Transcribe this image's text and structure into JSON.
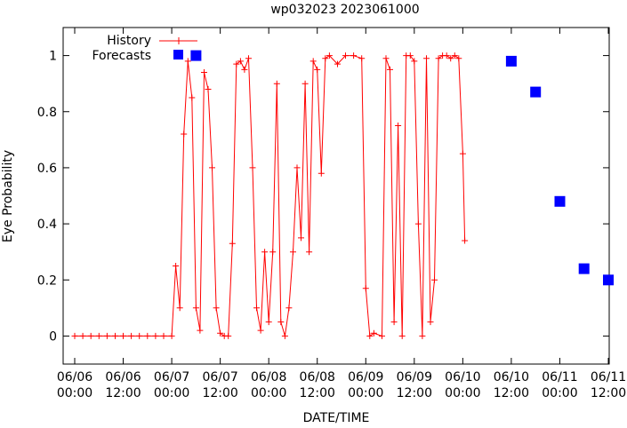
{
  "chart_data": {
    "type": "scatter",
    "title": "wp032023 2023061000",
    "xlabel": "DATE/TIME",
    "ylabel": "Eye Probability",
    "xlim": [
      "2023-06-06 00:00",
      "2023-06-11 12:00"
    ],
    "ylim": [
      -0.1,
      1.1
    ],
    "grid": false,
    "legend_position": "top-left",
    "colors": {
      "history": "#ff0000",
      "forecasts": "#0000ff"
    },
    "x_ticks": [
      {
        "date": "06/06",
        "time": "00:00"
      },
      {
        "date": "06/06",
        "time": "12:00"
      },
      {
        "date": "06/07",
        "time": "00:00"
      },
      {
        "date": "06/07",
        "time": "12:00"
      },
      {
        "date": "06/08",
        "time": "00:00"
      },
      {
        "date": "06/08",
        "time": "12:00"
      },
      {
        "date": "06/09",
        "time": "00:00"
      },
      {
        "date": "06/09",
        "time": "12:00"
      },
      {
        "date": "06/10",
        "time": "00:00"
      },
      {
        "date": "06/10",
        "time": "12:00"
      },
      {
        "date": "06/11",
        "time": "00:00"
      },
      {
        "date": "06/11",
        "time": "12:00"
      }
    ],
    "y_ticks": [
      "0",
      "0.2",
      "0.4",
      "0.6",
      "0.8",
      "1"
    ],
    "series": [
      {
        "name": "History",
        "style": "line-plus",
        "points": [
          [
            "2023-06-06 00:00",
            0.0
          ],
          [
            "2023-06-06 02:00",
            0.0
          ],
          [
            "2023-06-06 04:00",
            0.0
          ],
          [
            "2023-06-06 06:00",
            0.0
          ],
          [
            "2023-06-06 08:00",
            0.0
          ],
          [
            "2023-06-06 10:00",
            0.0
          ],
          [
            "2023-06-06 12:00",
            0.0
          ],
          [
            "2023-06-06 14:00",
            0.0
          ],
          [
            "2023-06-06 16:00",
            0.0
          ],
          [
            "2023-06-06 18:00",
            0.0
          ],
          [
            "2023-06-06 20:00",
            0.0
          ],
          [
            "2023-06-06 22:00",
            0.0
          ],
          [
            "2023-06-07 00:00",
            0.0
          ],
          [
            "2023-06-07 01:00",
            0.25
          ],
          [
            "2023-06-07 02:00",
            0.1
          ],
          [
            "2023-06-07 03:00",
            0.72
          ],
          [
            "2023-06-07 04:00",
            0.98
          ],
          [
            "2023-06-07 05:00",
            0.85
          ],
          [
            "2023-06-07 06:00",
            0.1
          ],
          [
            "2023-06-07 07:00",
            0.02
          ],
          [
            "2023-06-07 08:00",
            0.94
          ],
          [
            "2023-06-07 09:00",
            0.88
          ],
          [
            "2023-06-07 10:00",
            0.6
          ],
          [
            "2023-06-07 11:00",
            0.1
          ],
          [
            "2023-06-07 12:00",
            0.01
          ],
          [
            "2023-06-07 13:00",
            0.0
          ],
          [
            "2023-06-07 14:00",
            0.0
          ],
          [
            "2023-06-07 15:00",
            0.33
          ],
          [
            "2023-06-07 16:00",
            0.97
          ],
          [
            "2023-06-07 17:00",
            0.98
          ],
          [
            "2023-06-07 18:00",
            0.95
          ],
          [
            "2023-06-07 19:00",
            0.99
          ],
          [
            "2023-06-07 20:00",
            0.6
          ],
          [
            "2023-06-07 21:00",
            0.1
          ],
          [
            "2023-06-07 22:00",
            0.02
          ],
          [
            "2023-06-07 23:00",
            0.3
          ],
          [
            "2023-06-08 00:00",
            0.05
          ],
          [
            "2023-06-08 01:00",
            0.3
          ],
          [
            "2023-06-08 02:00",
            0.9
          ],
          [
            "2023-06-08 03:00",
            0.05
          ],
          [
            "2023-06-08 04:00",
            0.0
          ],
          [
            "2023-06-08 05:00",
            0.1
          ],
          [
            "2023-06-08 06:00",
            0.3
          ],
          [
            "2023-06-08 07:00",
            0.6
          ],
          [
            "2023-06-08 08:00",
            0.35
          ],
          [
            "2023-06-08 09:00",
            0.9
          ],
          [
            "2023-06-08 10:00",
            0.3
          ],
          [
            "2023-06-08 11:00",
            0.98
          ],
          [
            "2023-06-08 12:00",
            0.95
          ],
          [
            "2023-06-08 13:00",
            0.58
          ],
          [
            "2023-06-08 14:00",
            0.99
          ],
          [
            "2023-06-08 15:00",
            1.0
          ],
          [
            "2023-06-08 17:00",
            0.97
          ],
          [
            "2023-06-08 19:00",
            1.0
          ],
          [
            "2023-06-08 21:00",
            1.0
          ],
          [
            "2023-06-08 23:00",
            0.99
          ],
          [
            "2023-06-09 00:00",
            0.17
          ],
          [
            "2023-06-09 01:00",
            0.0
          ],
          [
            "2023-06-09 02:00",
            0.01
          ],
          [
            "2023-06-09 04:00",
            0.0
          ],
          [
            "2023-06-09 05:00",
            0.99
          ],
          [
            "2023-06-09 06:00",
            0.95
          ],
          [
            "2023-06-09 07:00",
            0.05
          ],
          [
            "2023-06-09 08:00",
            0.75
          ],
          [
            "2023-06-09 09:00",
            0.0
          ],
          [
            "2023-06-09 10:00",
            1.0
          ],
          [
            "2023-06-09 11:00",
            1.0
          ],
          [
            "2023-06-09 12:00",
            0.98
          ],
          [
            "2023-06-09 13:00",
            0.4
          ],
          [
            "2023-06-09 14:00",
            0.0
          ],
          [
            "2023-06-09 15:00",
            0.99
          ],
          [
            "2023-06-09 16:00",
            0.05
          ],
          [
            "2023-06-09 17:00",
            0.2
          ],
          [
            "2023-06-09 18:00",
            0.99
          ],
          [
            "2023-06-09 19:00",
            1.0
          ],
          [
            "2023-06-09 20:00",
            1.0
          ],
          [
            "2023-06-09 21:00",
            0.99
          ],
          [
            "2023-06-09 22:00",
            1.0
          ],
          [
            "2023-06-09 23:00",
            0.99
          ],
          [
            "2023-06-10 00:00",
            0.65
          ],
          [
            "2023-06-10 00:30",
            0.34
          ]
        ]
      },
      {
        "name": "Forecasts",
        "style": "square",
        "points": [
          [
            "2023-06-07 06:00",
            1.0
          ],
          [
            "2023-06-10 12:00",
            0.98
          ],
          [
            "2023-06-10 18:00",
            0.87
          ],
          [
            "2023-06-11 00:00",
            0.48
          ],
          [
            "2023-06-11 06:00",
            0.24
          ],
          [
            "2023-06-11 12:00",
            0.2
          ]
        ]
      }
    ]
  }
}
